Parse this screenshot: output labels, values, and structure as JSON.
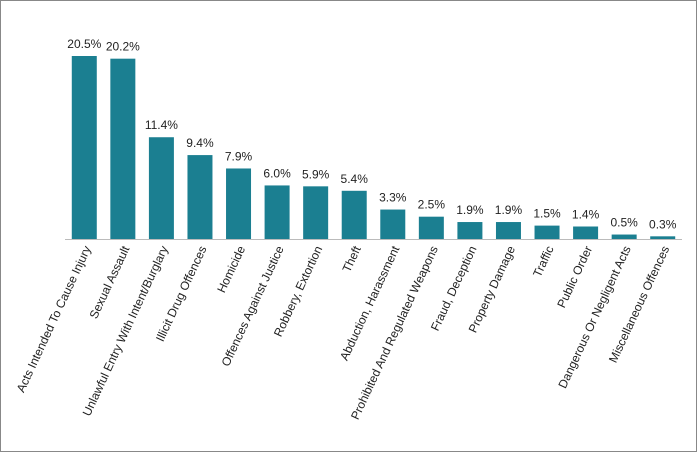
{
  "chart_data": {
    "type": "bar",
    "categories": [
      "Acts Intended To Cause Injury",
      "Sexual Assault",
      "Unlawful Entry With Intent/Burglary",
      "Illicit Drug Offences",
      "Homicide",
      "Offences Against Justice",
      "Robbery, Extortion",
      "Theft",
      "Abduction, Harassment",
      "Prohibited And Regulated Weapons",
      "Fraud, Deception",
      "Property Damage",
      "Traffic",
      "Public Order",
      "Dangerous Or Negligent Acts",
      "Miscellaneous Offences"
    ],
    "values": [
      20.5,
      20.2,
      11.4,
      9.4,
      7.9,
      6.0,
      5.9,
      5.4,
      3.3,
      2.5,
      1.9,
      1.9,
      1.5,
      1.4,
      0.5,
      0.3
    ],
    "value_labels": [
      "20.5%",
      "20.2%",
      "11.4%",
      "9.4%",
      "7.9%",
      "6.0%",
      "5.9%",
      "5.4%",
      "3.3%",
      "2.5%",
      "1.9%",
      "1.9%",
      "1.5%",
      "1.4%",
      "0.5%",
      "0.3%"
    ],
    "color": "#1b7f91"
  }
}
